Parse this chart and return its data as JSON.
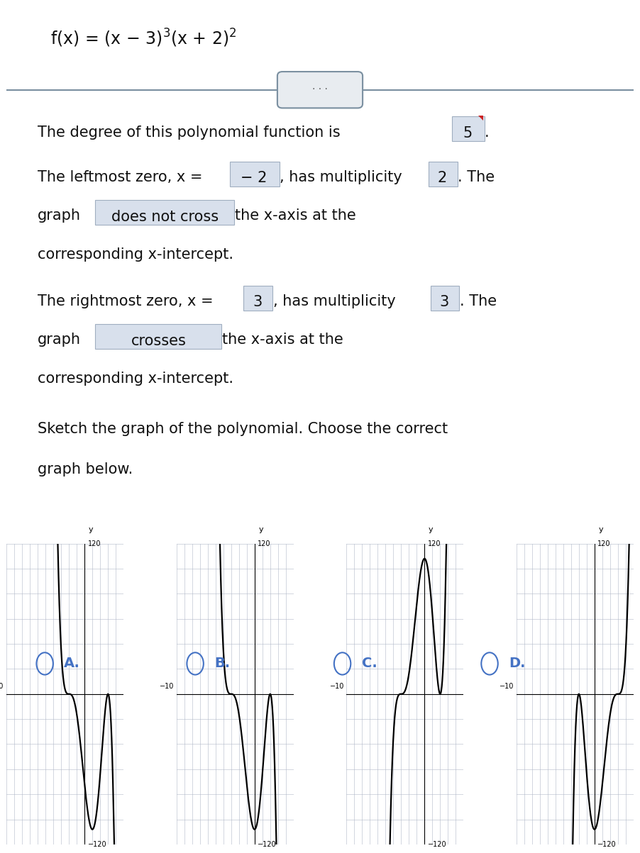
{
  "bg_color": "#ffffff",
  "text_color": "#111111",
  "highlight_color": "#d8e0ec",
  "highlight_border": "#a0aec0",
  "separator_color": "#7a8fa0",
  "radio_color": "#4472c4",
  "grid_color": "#b0b8c8",
  "curve_color": "#000000",
  "options": [
    "A.",
    "B.",
    "C.",
    "D."
  ],
  "graph_xlim": [
    -10,
    5
  ],
  "graph_ylim": [
    -120,
    120
  ]
}
